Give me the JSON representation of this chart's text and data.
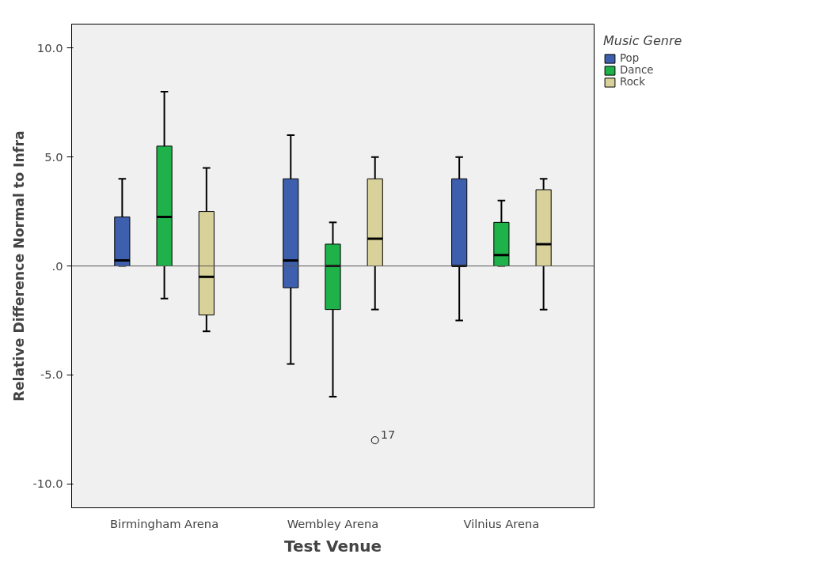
{
  "chart_data": {
    "type": "box",
    "xlabel": "Test Venue",
    "ylabel": "Relative Difference Normal to Infra",
    "legend_title": "Music Genre",
    "legend": "top right",
    "grid": false,
    "categories": [
      "Birmingham Arena",
      "Wembley Arena",
      "Vilnius Arena"
    ],
    "ylim": [
      -11.1,
      11.1
    ],
    "yticks": [
      {
        "value": 10,
        "label": "10.0"
      },
      {
        "value": 5,
        "label": "5.0"
      },
      {
        "value": 0,
        "label": ".0"
      },
      {
        "value": -5,
        "label": "-5.0"
      },
      {
        "value": -10,
        "label": "-10.0"
      }
    ],
    "ref_lines": [
      {
        "axis": "y",
        "value": 0,
        "color": "#555555"
      }
    ],
    "annotations": [
      "17"
    ],
    "series": [
      {
        "name": "Pop",
        "color": "#3e5fae",
        "boxes": [
          {
            "low": 0,
            "q1": 0,
            "median": 0.25,
            "q3": 2.25,
            "high": 4
          },
          {
            "low": -4.5,
            "q1": -1,
            "median": 0.25,
            "q3": 4,
            "high": 6
          },
          {
            "low": -2.5,
            "q1": 0,
            "median": 0,
            "q3": 4,
            "high": 5
          }
        ]
      },
      {
        "name": "Dance",
        "color": "#1fb24a",
        "boxes": [
          {
            "low": -1.5,
            "q1": 0,
            "median": 2.25,
            "q3": 5.5,
            "high": 8
          },
          {
            "low": -6,
            "q1": -2,
            "median": 0,
            "q3": 1,
            "high": 2
          },
          {
            "low": 0,
            "q1": 0,
            "median": 0.5,
            "q3": 2,
            "high": 3
          }
        ]
      },
      {
        "name": "Rock",
        "color": "#d8d19a",
        "boxes": [
          {
            "low": -3,
            "q1": -2.25,
            "median": -0.5,
            "q3": 2.5,
            "high": 4.5
          },
          {
            "low": -2,
            "q1": 0,
            "median": 1.25,
            "q3": 4,
            "high": 5,
            "outliers": [
              -8
            ]
          },
          {
            "low": -2,
            "q1": 0,
            "median": 1,
            "q3": 3.5,
            "high": 4
          }
        ]
      }
    ]
  }
}
